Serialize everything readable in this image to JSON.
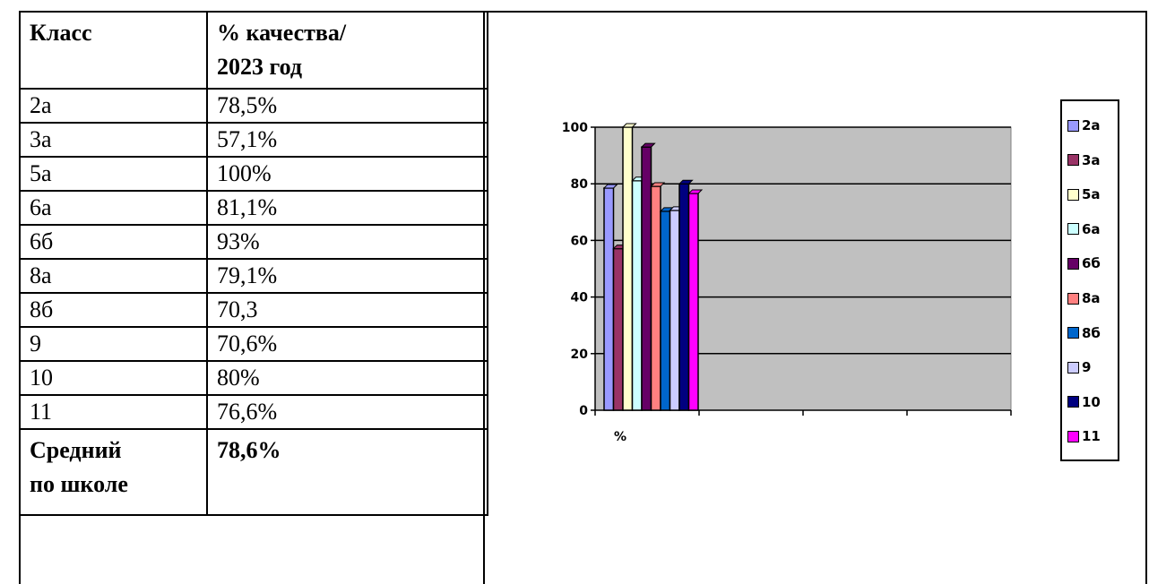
{
  "table": {
    "header": {
      "class": "Класс",
      "quality_line1": "% качества/",
      "quality_line2": "2023 год"
    },
    "rows": [
      {
        "class": "2а",
        "value": "78,5%"
      },
      {
        "class": "3а",
        "value": "57,1%"
      },
      {
        "class": "5а",
        "value": "100%"
      },
      {
        "class": "6а",
        "value": "81,1%"
      },
      {
        "class": "6б",
        "value": "93%"
      },
      {
        "class": "8а",
        "value": "79,1%"
      },
      {
        "class": "8б",
        "value": "70,3"
      },
      {
        "class": "9",
        "value": "70,6%"
      },
      {
        "class": "10",
        "value": "80%"
      },
      {
        "class": "11",
        "value": "76,6%"
      }
    ],
    "footer": {
      "label_line1": "Средний",
      "label_line2": "по школе",
      "value": "78,6%"
    }
  },
  "chart_data": {
    "type": "bar",
    "categories": [
      "%"
    ],
    "series": [
      {
        "name": "2а",
        "values": [
          78.5
        ],
        "color": "#9999ff"
      },
      {
        "name": "3а",
        "values": [
          57.1
        ],
        "color": "#993366"
      },
      {
        "name": "5а",
        "values": [
          100
        ],
        "color": "#ffffcc"
      },
      {
        "name": "6а",
        "values": [
          81.1
        ],
        "color": "#ccffff"
      },
      {
        "name": "6б",
        "values": [
          93
        ],
        "color": "#660066"
      },
      {
        "name": "8а",
        "values": [
          79.1
        ],
        "color": "#ff8080"
      },
      {
        "name": "8б",
        "values": [
          70.3
        ],
        "color": "#0066cc"
      },
      {
        "name": "9",
        "values": [
          70.6
        ],
        "color": "#ccccff"
      },
      {
        "name": "10",
        "values": [
          80
        ],
        "color": "#000080"
      },
      {
        "name": "11",
        "values": [
          76.6
        ],
        "color": "#ff00ff"
      }
    ],
    "yticks": [
      "0",
      "20",
      "40",
      "60",
      "80",
      "100"
    ],
    "ylim": [
      0,
      100
    ],
    "grid": true,
    "plot_background": "#c0c0c0",
    "legend_position": "right"
  }
}
